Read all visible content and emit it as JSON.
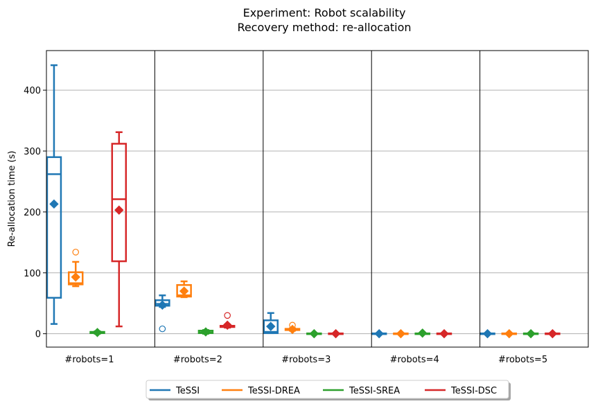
{
  "chart_data": {
    "type": "box",
    "title": "Experiment: Robot scalability",
    "subtitle": "Recovery method: re-allocation",
    "xlabel": "",
    "ylabel": "Re-allocation time (s)",
    "ylim": [
      -22,
      465
    ],
    "yticks": [
      0,
      100,
      200,
      300,
      400
    ],
    "grid": "horizontal",
    "legend_position": "bottom-center",
    "groups": [
      "#robots=1",
      "#robots=2",
      "#robots=3",
      "#robots=4",
      "#robots=5"
    ],
    "series": [
      {
        "name": "TeSSI",
        "color": "#1f77b4",
        "boxes": [
          {
            "whislo": 16,
            "q1": 59,
            "med": 262,
            "q3": 290,
            "whishi": 441,
            "mean": 213,
            "fliers": []
          },
          {
            "whislo": 44,
            "q1": 46,
            "med": 49,
            "q3": 55,
            "whishi": 63,
            "mean": 47,
            "fliers": [
              8
            ]
          },
          {
            "whislo": 1,
            "q1": 1,
            "med": 3,
            "q3": 22,
            "whishi": 34,
            "mean": 12,
            "fliers": []
          },
          {
            "whislo": 0,
            "q1": 0,
            "med": 0,
            "q3": 0.5,
            "whishi": 1,
            "mean": 0,
            "fliers": []
          },
          {
            "whislo": 0,
            "q1": 0,
            "med": 0,
            "q3": 0.5,
            "whishi": 1,
            "mean": 0,
            "fliers": []
          }
        ]
      },
      {
        "name": "TeSSI-DREA",
        "color": "#ff7f0e",
        "boxes": [
          {
            "whislo": 78,
            "q1": 81,
            "med": 83,
            "q3": 101,
            "whishi": 118,
            "mean": 93,
            "fliers": [
              134
            ]
          },
          {
            "whislo": 60,
            "q1": 61,
            "med": 63,
            "q3": 80,
            "whishi": 86,
            "mean": 70,
            "fliers": []
          },
          {
            "whislo": 5,
            "q1": 6,
            "med": 7,
            "q3": 8,
            "whishi": 9,
            "mean": 7,
            "fliers": [
              14
            ]
          },
          {
            "whislo": 0,
            "q1": 0,
            "med": 0,
            "q3": 0.5,
            "whishi": 1,
            "mean": 0,
            "fliers": []
          },
          {
            "whislo": 0,
            "q1": 0,
            "med": 0,
            "q3": 0.5,
            "whishi": 1,
            "mean": 0,
            "fliers": []
          }
        ]
      },
      {
        "name": "TeSSI-SREA",
        "color": "#2ca02c",
        "boxes": [
          {
            "whislo": 0,
            "q1": 1,
            "med": 2,
            "q3": 3,
            "whishi": 4,
            "mean": 2,
            "fliers": []
          },
          {
            "whislo": 0,
            "q1": 1,
            "med": 2,
            "q3": 5,
            "whishi": 6,
            "mean": 3,
            "fliers": []
          },
          {
            "whislo": 0,
            "q1": 0,
            "med": 0,
            "q3": 0.5,
            "whishi": 1,
            "mean": 0,
            "fliers": []
          },
          {
            "whislo": 0,
            "q1": 0,
            "med": 0,
            "q3": 0.5,
            "whishi": 1,
            "mean": 1,
            "fliers": []
          },
          {
            "whislo": 0,
            "q1": 0,
            "med": 0,
            "q3": 0.5,
            "whishi": 1,
            "mean": 0,
            "fliers": []
          }
        ]
      },
      {
        "name": "TeSSI-DSC",
        "color": "#d62728",
        "boxes": [
          {
            "whislo": 12,
            "q1": 119,
            "med": 221,
            "q3": 312,
            "whishi": 331,
            "mean": 203,
            "fliers": []
          },
          {
            "whislo": 10,
            "q1": 11,
            "med": 12,
            "q3": 13,
            "whishi": 15,
            "mean": 14,
            "fliers": [
              30
            ]
          },
          {
            "whislo": 0,
            "q1": 0,
            "med": 0,
            "q3": 0.5,
            "whishi": 1,
            "mean": 0,
            "fliers": []
          },
          {
            "whislo": 0,
            "q1": 0,
            "med": 0,
            "q3": 0.5,
            "whishi": 1,
            "mean": 0,
            "fliers": []
          },
          {
            "whislo": 0,
            "q1": 0,
            "med": 0,
            "q3": 0.5,
            "whishi": 1,
            "mean": 0,
            "fliers": []
          }
        ]
      }
    ]
  }
}
